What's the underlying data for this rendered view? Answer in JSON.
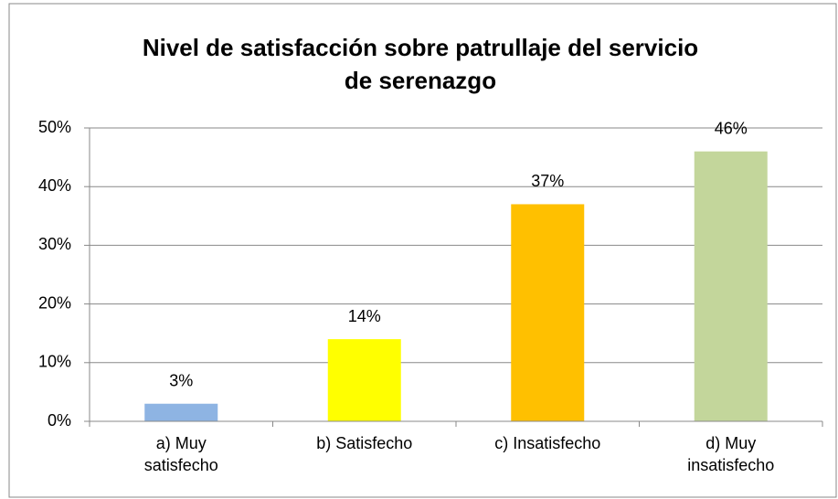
{
  "chart_data": {
    "type": "bar",
    "title": "Nivel de satisfacción sobre patrullaje del servicio de serenazgo",
    "categories": [
      "a) Muy satisfecho",
      "b) Satisfecho",
      "c) Insatisfecho",
      "d) Muy insatisfecho"
    ],
    "values": [
      3,
      14,
      37,
      46
    ],
    "value_labels": [
      "3%",
      "14%",
      "37%",
      "46%"
    ],
    "colors": [
      "#8eb4e3",
      "#ffff00",
      "#ffc000",
      "#c3d69b"
    ],
    "ylim": [
      0,
      50
    ],
    "yticks": [
      {
        "value": 0,
        "label": "0%"
      },
      {
        "value": 10,
        "label": "10%"
      },
      {
        "value": 20,
        "label": "20%"
      },
      {
        "value": 30,
        "label": "30%"
      },
      {
        "value": 40,
        "label": "40%"
      },
      {
        "value": 50,
        "label": "50%"
      }
    ],
    "grid": true
  }
}
